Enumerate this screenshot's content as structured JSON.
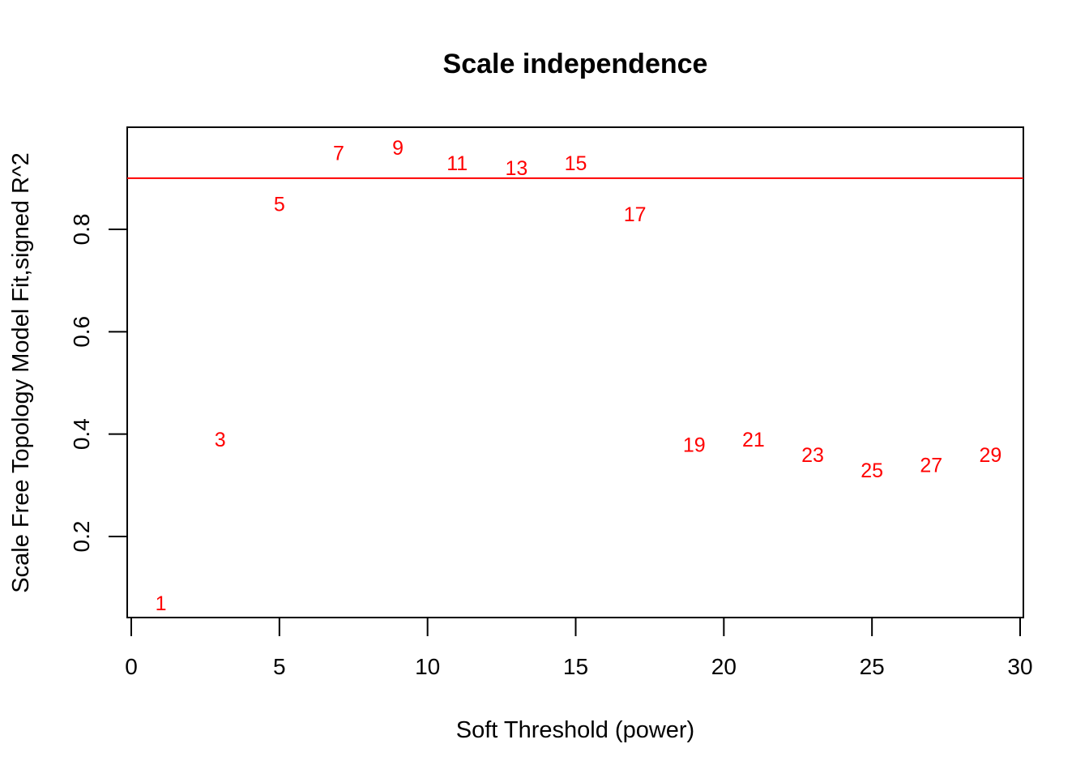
{
  "chart_data": {
    "type": "scatter",
    "title": "Scale independence",
    "xlabel": "Soft Threshold (power)",
    "ylabel": "Scale Free Topology Model Fit,signed R^2",
    "xlim": [
      0,
      30
    ],
    "ylim": [
      0.05,
      0.99
    ],
    "x_ticks": [
      0,
      5,
      10,
      15,
      20,
      25,
      30
    ],
    "y_ticks": [
      0.2,
      0.4,
      0.6,
      0.8
    ],
    "grid": false,
    "legend": "none",
    "marker": "text-label",
    "point_color": "#ff0000",
    "reference_line": {
      "orientation": "horizontal",
      "y": 0.9,
      "color": "#ff0000"
    },
    "points": [
      {
        "x": 1,
        "y": 0.07,
        "label": "1"
      },
      {
        "x": 3,
        "y": 0.39,
        "label": "3"
      },
      {
        "x": 5,
        "y": 0.85,
        "label": "5"
      },
      {
        "x": 7,
        "y": 0.95,
        "label": "7"
      },
      {
        "x": 9,
        "y": 0.96,
        "label": "9"
      },
      {
        "x": 11,
        "y": 0.93,
        "label": "11"
      },
      {
        "x": 13,
        "y": 0.92,
        "label": "13"
      },
      {
        "x": 15,
        "y": 0.93,
        "label": "15"
      },
      {
        "x": 17,
        "y": 0.83,
        "label": "17"
      },
      {
        "x": 19,
        "y": 0.38,
        "label": "19"
      },
      {
        "x": 21,
        "y": 0.39,
        "label": "21"
      },
      {
        "x": 23,
        "y": 0.36,
        "label": "23"
      },
      {
        "x": 25,
        "y": 0.33,
        "label": "25"
      },
      {
        "x": 27,
        "y": 0.34,
        "label": "27"
      },
      {
        "x": 29,
        "y": 0.36,
        "label": "29"
      }
    ]
  }
}
